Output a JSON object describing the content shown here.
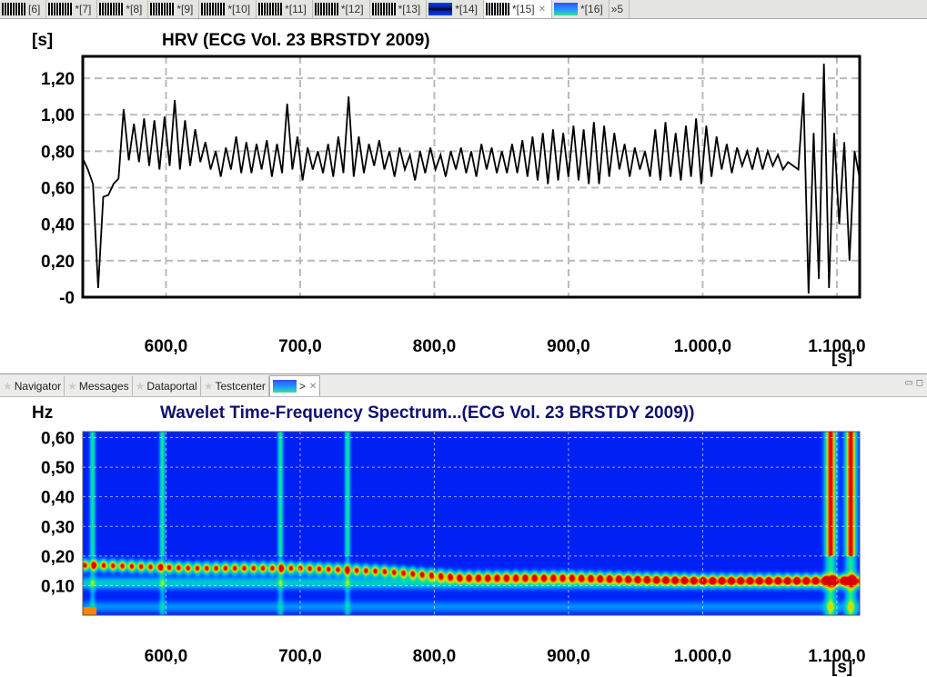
{
  "editor_tabs": [
    {
      "label": "[6]",
      "thumb": "bw"
    },
    {
      "label": "*[7]",
      "thumb": "bw"
    },
    {
      "label": "*[8]",
      "thumb": "bw"
    },
    {
      "label": "*[9]",
      "thumb": "bw"
    },
    {
      "label": "*[10]",
      "thumb": "bw"
    },
    {
      "label": "*[11]",
      "thumb": "bw"
    },
    {
      "label": "*[12]",
      "thumb": "bw"
    },
    {
      "label": "*[13]",
      "thumb": "bw"
    },
    {
      "label": "*[14]",
      "thumb": "blue"
    },
    {
      "label": "*[15]",
      "thumb": "bw",
      "active": true
    },
    {
      "label": "*[16]",
      "thumb": "spec"
    },
    {
      "label": "»5",
      "thumb": ""
    }
  ],
  "view_tabs": [
    {
      "label": "Navigator"
    },
    {
      "label": "Messages"
    },
    {
      "label": "Dataportal"
    },
    {
      "label": "Testcenter"
    }
  ],
  "view_active_label": ">",
  "chart_data": [
    {
      "type": "line",
      "title": "HRV (ECG Vol. 23 BRSTDY 2009)",
      "ylabel": "[s]",
      "xlabel": "[s]",
      "xlim": [
        538,
        1117
      ],
      "ylim": [
        0,
        1.32
      ],
      "yticks": [
        "-0",
        "0,20",
        "0,40",
        "0,60",
        "0,80",
        "1,00",
        "1,20"
      ],
      "ytick_values": [
        0,
        0.2,
        0.4,
        0.6,
        0.8,
        1.0,
        1.2
      ],
      "xticks": [
        "600,0",
        "700,0",
        "800,0",
        "900,0",
        "1.000,0",
        "1.100,0"
      ],
      "xtick_values": [
        600,
        700,
        800,
        900,
        1000,
        1100
      ],
      "grid": true,
      "values": [
        0.76,
        0.7,
        0.62,
        0.05,
        0.55,
        0.56,
        0.62,
        0.65,
        1.03,
        0.75,
        0.95,
        0.74,
        0.98,
        0.72,
        0.97,
        0.7,
        0.99,
        0.72,
        1.08,
        0.7,
        0.97,
        0.72,
        0.92,
        0.74,
        0.85,
        0.7,
        0.8,
        0.66,
        0.82,
        0.7,
        0.88,
        0.68,
        0.85,
        0.68,
        0.84,
        0.7,
        0.86,
        0.66,
        0.84,
        0.68,
        1.06,
        0.7,
        0.88,
        0.64,
        0.82,
        0.7,
        0.8,
        0.68,
        0.84,
        0.66,
        0.88,
        0.68,
        1.1,
        0.66,
        0.88,
        0.68,
        0.84,
        0.72,
        0.86,
        0.7,
        0.8,
        0.66,
        0.82,
        0.7,
        0.78,
        0.64,
        0.8,
        0.68,
        0.82,
        0.7,
        0.78,
        0.66,
        0.8,
        0.7,
        0.82,
        0.68,
        0.8,
        0.66,
        0.84,
        0.7,
        0.82,
        0.68,
        0.8,
        0.68,
        0.84,
        0.68,
        0.86,
        0.66,
        0.88,
        0.64,
        0.9,
        0.62,
        0.92,
        0.64,
        0.9,
        0.66,
        0.94,
        0.64,
        0.92,
        0.62,
        0.96,
        0.62,
        0.94,
        0.66,
        0.9,
        0.7,
        0.84,
        0.66,
        0.82,
        0.7,
        0.8,
        0.66,
        0.92,
        0.64,
        0.96,
        0.66,
        0.9,
        0.64,
        0.94,
        0.66,
        0.98,
        0.62,
        0.94,
        0.66,
        0.88,
        0.7,
        0.84,
        0.68,
        0.82,
        0.72,
        0.8,
        0.7,
        0.82,
        0.7,
        0.8,
        0.72,
        0.78,
        0.7,
        0.74,
        0.72,
        0.7,
        1.12,
        0.02,
        0.9,
        0.1,
        1.28,
        0.05,
        0.9,
        0.4,
        0.85,
        0.2,
        0.8,
        0.65
      ]
    },
    {
      "type": "heatmap",
      "title": "Wavelet Time-Frequency Spectrum...(ECG Vol. 23 BRSTDY 2009))",
      "ylabel": "Hz",
      "xlabel": "[s]",
      "xlim": [
        538,
        1117
      ],
      "ylim": [
        0,
        0.62
      ],
      "yticks": [
        "0,10",
        "0,20",
        "0,30",
        "0,40",
        "0,50",
        "0,60"
      ],
      "ytick_values": [
        0.1,
        0.2,
        0.3,
        0.4,
        0.5,
        0.6
      ],
      "xticks": [
        "600,0",
        "700,0",
        "800,0",
        "900,0",
        "1.000,0",
        "1.100,0"
      ],
      "xtick_values": [
        600,
        700,
        800,
        900,
        1000,
        1100
      ],
      "ridge": [
        [
          550,
          0.17
        ],
        [
          620,
          0.16
        ],
        [
          700,
          0.16
        ],
        [
          760,
          0.15
        ],
        [
          820,
          0.13
        ],
        [
          900,
          0.13
        ],
        [
          1000,
          0.12
        ],
        [
          1080,
          0.12
        ]
      ],
      "plumes": [
        545,
        597,
        685,
        735,
        1095,
        1110
      ]
    }
  ]
}
